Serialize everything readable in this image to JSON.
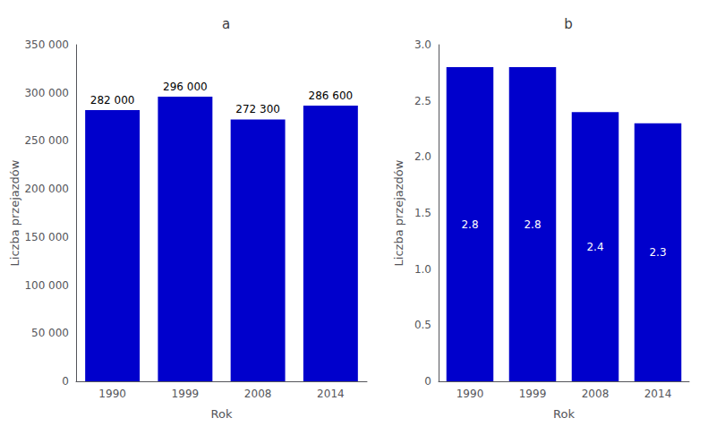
{
  "chart_data": [
    {
      "type": "bar",
      "title": "a",
      "xlabel": "Rok",
      "ylabel": "Liczba przejazdów",
      "categories": [
        "1990",
        "1999",
        "2008",
        "2014"
      ],
      "values": [
        282000,
        296000,
        272300,
        286600
      ],
      "value_labels": [
        "282 000",
        "296 000",
        "272 300",
        "286 600"
      ],
      "data_labels": true,
      "color": "#0000cc",
      "ylim": [
        0,
        350000
      ],
      "yticks": [
        0,
        {
          "value": 50000,
          "label": "50 000"
        },
        {
          "value": 100000,
          "label": "100 000"
        },
        {
          "value": 150000,
          "label": "150 000"
        },
        {
          "value": 200000,
          "label": "200 000"
        },
        {
          "value": 250000,
          "label": "250 000"
        },
        {
          "value": 300000,
          "label": "300 000"
        },
        {
          "value": 350000,
          "label": "350 000"
        }
      ],
      "grid": false
    },
    {
      "type": "bar",
      "title": "b",
      "xlabel": "Rok",
      "ylabel": "Liczba przejazdów",
      "categories": [
        "1990",
        "1999",
        "2008",
        "2014"
      ],
      "values": [
        2.8,
        2.8,
        2.4,
        2.3
      ],
      "data_labels": true,
      "color": "#0000cc",
      "ylim": [
        0,
        3.0
      ],
      "yticks": [
        0,
        0.5,
        {
          "value": 1,
          "label": "1.0"
        },
        1.5,
        {
          "value": 2,
          "label": "2.0"
        },
        2.5,
        {
          "value": 3,
          "label": "3.0"
        }
      ],
      "grid": false
    }
  ]
}
